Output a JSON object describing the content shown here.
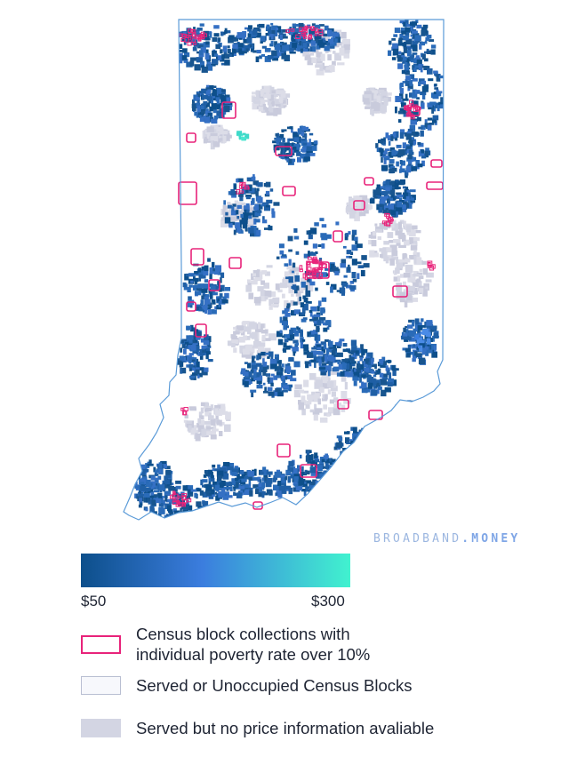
{
  "map": {
    "state": "Indiana",
    "colors": {
      "low_price": "#0d4f8b",
      "mid_price": "#3b7dde",
      "high_price": "#41f2cf",
      "poverty_outline": "#e8237a",
      "no_price": "#d3d5e3",
      "served": "#ffffff",
      "state_border": "#5b9bd8"
    }
  },
  "watermark": {
    "brand": "BROADBAND",
    "sep": ".",
    "tld": "MONEY"
  },
  "gradient": {
    "min_label": "$50",
    "max_label": "$300",
    "min_value": 50,
    "max_value": 300
  },
  "legend": {
    "poverty": "Census block collections with individual poverty rate over 10%",
    "served": "Served or Unoccupied Census Blocks",
    "no_price": "Served but no price information avaliable"
  }
}
